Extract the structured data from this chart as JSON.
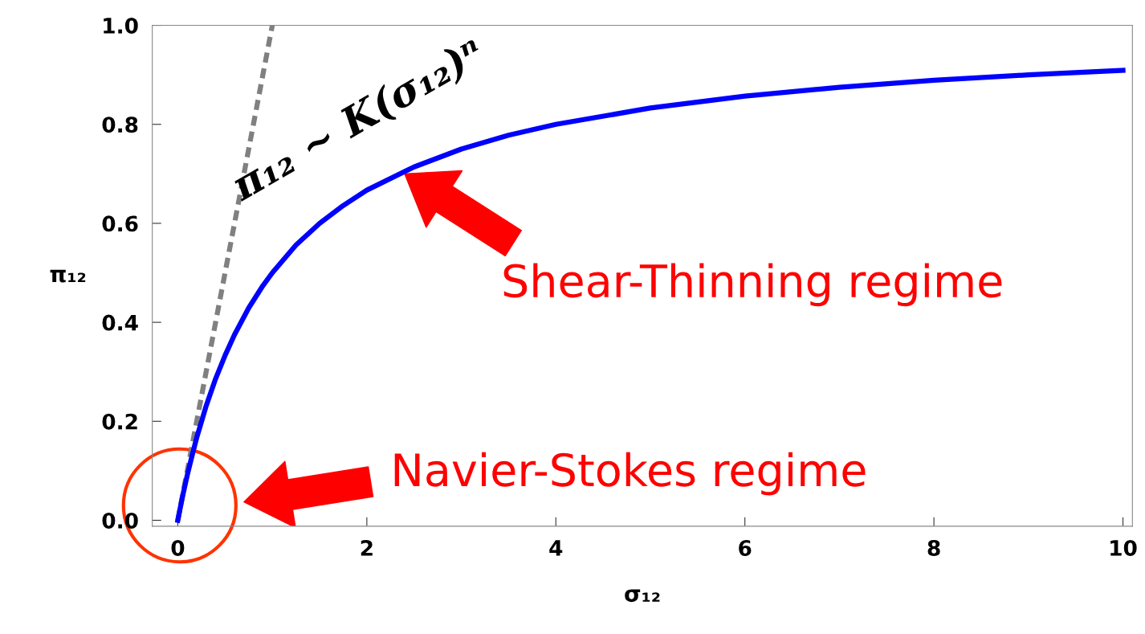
{
  "chart_data": {
    "type": "line",
    "xlabel": "σ₁₂",
    "ylabel": "π₁₂",
    "xlim": [
      -0.27,
      10.1
    ],
    "ylim": [
      -0.012,
      1.0
    ],
    "xticks": [
      0,
      2,
      4,
      6,
      8,
      10
    ],
    "yticks": [
      {
        "value": 0,
        "label": "0.0"
      },
      {
        "value": 0.2,
        "label": "0.2"
      },
      {
        "value": 0.4,
        "label": "0.4"
      },
      {
        "value": 0.6,
        "label": "0.6"
      },
      {
        "value": 0.8,
        "label": "0.8"
      },
      {
        "value": 1.0,
        "label": "1.0"
      }
    ],
    "grid": false,
    "legend": false,
    "series": [
      {
        "color": "#0000ff",
        "line_style": "solid",
        "x": [
          0,
          0.05,
          0.1,
          0.15,
          0.2,
          0.3,
          0.4,
          0.5,
          0.6,
          0.75,
          0.9,
          1,
          1.25,
          1.5,
          1.75,
          2,
          2.5,
          3,
          3.5,
          4,
          5,
          6,
          7,
          8,
          9,
          10
        ],
        "values": [
          0,
          0.048,
          0.091,
          0.13,
          0.167,
          0.231,
          0.286,
          0.333,
          0.375,
          0.429,
          0.474,
          0.5,
          0.556,
          0.6,
          0.636,
          0.667,
          0.714,
          0.75,
          0.778,
          0.8,
          0.833,
          0.857,
          0.875,
          0.889,
          0.9,
          0.909
        ]
      },
      {
        "color": "#808080",
        "line_style": "dashed",
        "x": [
          0,
          1
        ],
        "values": [
          0,
          1
        ]
      }
    ],
    "annotations": [
      "π₁₂ ~ K(σ₁₂)ⁿ",
      "Shear-Thinning regime",
      "Navier-Stokes regime"
    ]
  }
}
